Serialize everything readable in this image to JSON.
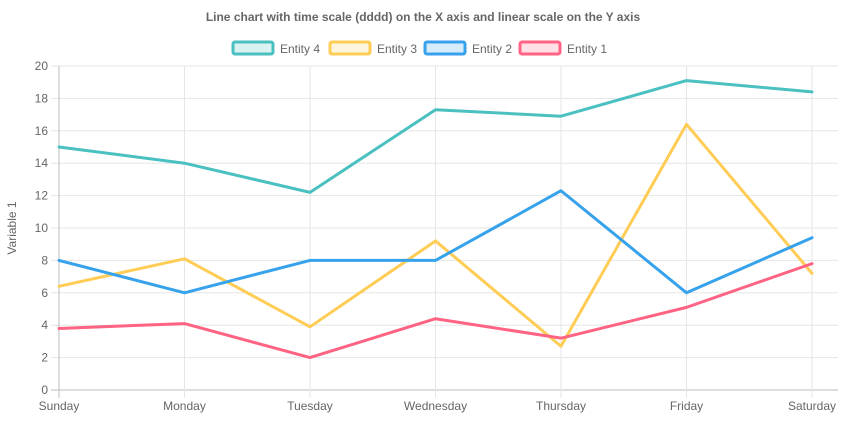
{
  "chart_data": {
    "type": "line",
    "title": "Line chart with time scale (dddd) on the X axis and linear scale on the Y axis",
    "xlabel": "",
    "ylabel": "Variable 1",
    "categories": [
      "Sunday",
      "Monday",
      "Tuesday",
      "Wednesday",
      "Thursday",
      "Friday",
      "Saturday"
    ],
    "ylim": [
      0,
      20
    ],
    "yticks": [
      0,
      2,
      4,
      6,
      8,
      10,
      12,
      14,
      16,
      18,
      20
    ],
    "grid": true,
    "legend_position": "top",
    "series": [
      {
        "name": "Entity 4",
        "color": "#4bc0c0",
        "fill": "#dbf2f2",
        "values": [
          15.0,
          14.0,
          12.2,
          17.3,
          16.9,
          19.1,
          18.4
        ]
      },
      {
        "name": "Entity 3",
        "color": "#ffcd56",
        "fill": "#fff5dd",
        "values": [
          6.4,
          8.1,
          3.9,
          9.2,
          2.7,
          16.4,
          7.2
        ]
      },
      {
        "name": "Entity 2",
        "color": "#36a2eb",
        "fill": "#d7ecfb",
        "values": [
          8.0,
          6.0,
          8.0,
          8.0,
          12.3,
          6.0,
          9.4
        ]
      },
      {
        "name": "Entity 1",
        "color": "#ff6384",
        "fill": "#ffe0e6",
        "values": [
          3.8,
          4.1,
          2.0,
          4.4,
          3.2,
          5.1,
          7.8
        ]
      }
    ]
  }
}
